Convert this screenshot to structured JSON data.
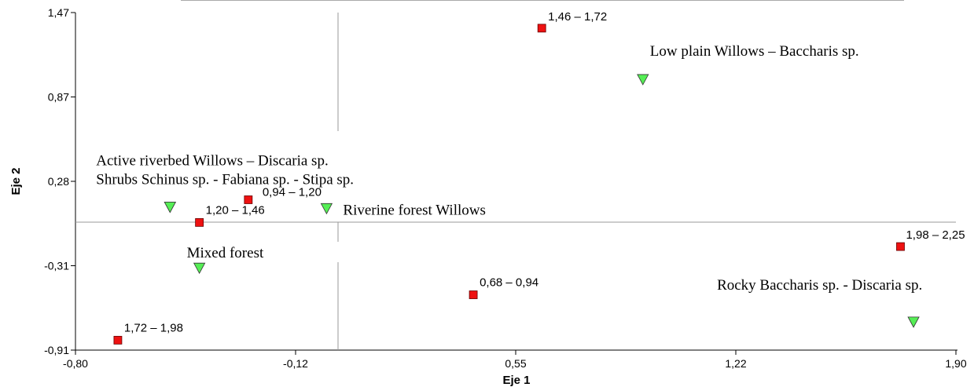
{
  "chart_data": {
    "type": "scatter",
    "title": "",
    "xlabel": "Eje 1",
    "ylabel": "Eje 2",
    "xlim": [
      -0.8,
      1.9
    ],
    "ylim": [
      -0.91,
      1.47
    ],
    "x_ticks": [
      "-0,80",
      "-0,12",
      "0,55",
      "1,22",
      "1,90"
    ],
    "y_ticks": [
      "1,47",
      "0,87",
      "0,28",
      "-0,31",
      "-0,91"
    ],
    "grid": false,
    "colors": {
      "classes": "#ee1111",
      "groups": "#55ee55"
    },
    "series": [
      {
        "marker": "square",
        "points": [
          {
            "label": "1,46 – 1,72",
            "x": 0.63,
            "y": 1.36
          },
          {
            "label": "0,94 – 1,20",
            "x": -0.27,
            "y": 0.15
          },
          {
            "label": "1,20 – 1,46",
            "x": -0.42,
            "y": -0.01
          },
          {
            "label": "1,98 – 2,25",
            "x": 1.73,
            "y": -0.18
          },
          {
            "label": "0,68 – 0,94",
            "x": 0.42,
            "y": -0.52
          },
          {
            "label": "1,72 – 1,98",
            "x": -0.67,
            "y": -0.84
          }
        ]
      },
      {
        "marker": "triangle-down",
        "points": [
          {
            "label": "Low plain Willows – Baccharis sp.",
            "x": 0.94,
            "y": 1.0
          },
          {
            "label": "Active riverbed Willows – Discaria sp.",
            "x": -0.51,
            "y": 0.1
          },
          {
            "label": "Shrubs Schinus sp. - Fabiana sp. - Stipa sp.",
            "x": -0.51,
            "y": 0.1
          },
          {
            "label": "Riverine forest Willows",
            "x": -0.03,
            "y": 0.09
          },
          {
            "label": "Mixed forest",
            "x": -0.42,
            "y": -0.33
          },
          {
            "label": "Rocky Baccharis sp. - Discaria sp.",
            "x": 1.77,
            "y": -0.71
          }
        ]
      }
    ]
  }
}
